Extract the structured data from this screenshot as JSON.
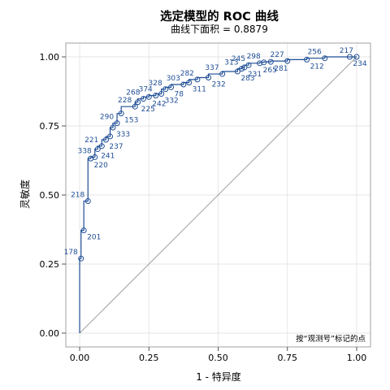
{
  "chart_data": {
    "type": "line",
    "title": "选定模型的 ROC 曲线",
    "subtitle": "曲线下面积 = 0.8879",
    "xlabel": "1 - 特异度",
    "ylabel": "灵敏度",
    "xlim": [
      -0.05,
      1.05
    ],
    "ylim": [
      -0.05,
      1.05
    ],
    "x_ticks": [
      "0.00",
      "0.25",
      "0.50",
      "0.75",
      "1.00"
    ],
    "y_ticks": [
      "0.00",
      "0.25",
      "0.50",
      "0.75",
      "1.00"
    ],
    "grid": true,
    "footnote": "按“观测号”标记的点",
    "colors": {
      "curve": "#1f4e96",
      "diagonal": "#a0a0a0",
      "grid": "#e6e6e6",
      "frame": "#a0a0a0"
    },
    "reference_line": {
      "x": [
        0,
        1
      ],
      "y": [
        0,
        1
      ]
    },
    "points": [
      {
        "x": 0.0,
        "y": 0.0,
        "label": ""
      },
      {
        "x": 0.005,
        "y": 0.27,
        "label": "178"
      },
      {
        "x": 0.015,
        "y": 0.372,
        "label": "201"
      },
      {
        "x": 0.03,
        "y": 0.478,
        "label": "218"
      },
      {
        "x": 0.04,
        "y": 0.632,
        "label": "220"
      },
      {
        "x": 0.055,
        "y": 0.637,
        "label": "338"
      },
      {
        "x": 0.065,
        "y": 0.666,
        "label": "241"
      },
      {
        "x": 0.08,
        "y": 0.677,
        "label": "221"
      },
      {
        "x": 0.095,
        "y": 0.7,
        "label": "237"
      },
      {
        "x": 0.11,
        "y": 0.712,
        "label": ""
      },
      {
        "x": 0.12,
        "y": 0.744,
        "label": "333"
      },
      {
        "x": 0.135,
        "y": 0.76,
        "label": "290"
      },
      {
        "x": 0.15,
        "y": 0.795,
        "label": "153"
      },
      {
        "x": 0.2,
        "y": 0.82,
        "label": "228"
      },
      {
        "x": 0.21,
        "y": 0.836,
        "label": "225"
      },
      {
        "x": 0.23,
        "y": 0.848,
        "label": "268"
      },
      {
        "x": 0.25,
        "y": 0.855,
        "label": "242"
      },
      {
        "x": 0.275,
        "y": 0.86,
        "label": "374"
      },
      {
        "x": 0.295,
        "y": 0.866,
        "label": "332"
      },
      {
        "x": 0.31,
        "y": 0.883,
        "label": "328"
      },
      {
        "x": 0.33,
        "y": 0.89,
        "label": "78"
      },
      {
        "x": 0.375,
        "y": 0.9,
        "label": "303"
      },
      {
        "x": 0.395,
        "y": 0.907,
        "label": "311"
      },
      {
        "x": 0.425,
        "y": 0.918,
        "label": "282"
      },
      {
        "x": 0.465,
        "y": 0.925,
        "label": "232"
      },
      {
        "x": 0.515,
        "y": 0.938,
        "label": "337"
      },
      {
        "x": 0.57,
        "y": 0.947,
        "label": "283"
      },
      {
        "x": 0.585,
        "y": 0.957,
        "label": "313"
      },
      {
        "x": 0.595,
        "y": 0.962,
        "label": "231"
      },
      {
        "x": 0.61,
        "y": 0.97,
        "label": "245"
      },
      {
        "x": 0.65,
        "y": 0.977,
        "label": "265"
      },
      {
        "x": 0.665,
        "y": 0.98,
        "label": "298"
      },
      {
        "x": 0.69,
        "y": 0.982,
        "label": "281"
      },
      {
        "x": 0.75,
        "y": 0.985,
        "label": "227"
      },
      {
        "x": 0.82,
        "y": 0.99,
        "label": "212"
      },
      {
        "x": 0.885,
        "y": 0.995,
        "label": "256"
      },
      {
        "x": 0.975,
        "y": 1.0,
        "label": "234"
      },
      {
        "x": 1.0,
        "y": 1.0,
        "label": "217"
      }
    ]
  }
}
